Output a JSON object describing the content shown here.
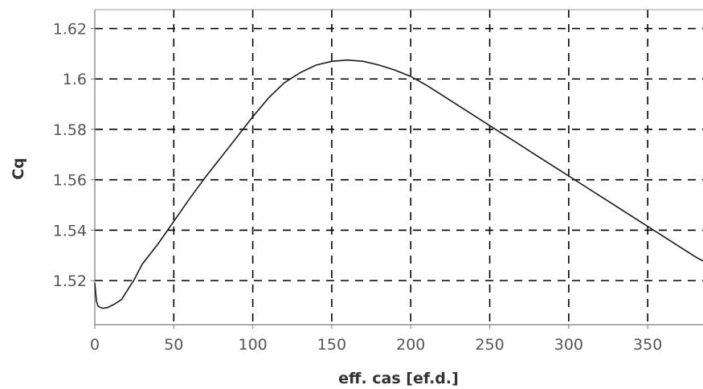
{
  "chart_data": {
    "type": "line",
    "title": "",
    "xlabel": "eff. cas [ef.d.]",
    "ylabel": "Cq",
    "xlim": [
      0,
      385
    ],
    "ylim": [
      1.5025,
      1.6275
    ],
    "x_ticks": [
      0,
      50,
      100,
      150,
      200,
      250,
      300,
      350
    ],
    "x_tick_labels": [
      "0",
      "50",
      "100",
      "150",
      "200",
      "250",
      "300",
      "350"
    ],
    "y_ticks": [
      1.52,
      1.54,
      1.56,
      1.58,
      1.6,
      1.62
    ],
    "y_tick_labels": [
      "1.52",
      "1.54",
      "1.56",
      "1.58",
      "1.6",
      "1.62"
    ],
    "grid": true,
    "legend": "none",
    "line_color": "#1a1a1a",
    "series": [
      {
        "x": [
          0,
          1,
          2,
          3,
          5,
          8,
          12,
          17,
          20,
          25,
          30,
          40,
          50,
          60,
          70,
          80,
          90,
          100,
          110,
          120,
          130,
          140,
          150,
          160,
          170,
          180,
          190,
          200,
          210,
          220,
          230,
          240,
          250,
          260,
          270,
          280,
          290,
          300,
          310,
          320,
          330,
          340,
          350,
          360,
          370,
          380,
          385
        ],
        "y": [
          1.519,
          1.512,
          1.51,
          1.5095,
          1.509,
          1.5093,
          1.5105,
          1.5125,
          1.5155,
          1.5205,
          1.5265,
          1.5345,
          1.5435,
          1.5525,
          1.561,
          1.569,
          1.577,
          1.585,
          1.5925,
          1.5985,
          1.6025,
          1.6055,
          1.607,
          1.6075,
          1.607,
          1.6055,
          1.6035,
          1.601,
          1.5975,
          1.5935,
          1.5895,
          1.5855,
          1.5815,
          1.5775,
          1.5735,
          1.5695,
          1.5655,
          1.5615,
          1.5575,
          1.5535,
          1.5495,
          1.5455,
          1.5415,
          1.5375,
          1.5335,
          1.5295,
          1.5278
        ]
      }
    ]
  }
}
